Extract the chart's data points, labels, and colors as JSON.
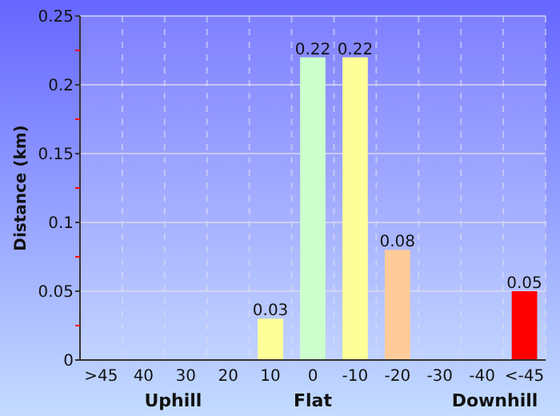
{
  "chart_data": {
    "type": "bar",
    "ylabel": "Distance (km)",
    "categories": [
      ">45",
      "40",
      "30",
      "20",
      "10",
      "0",
      "-10",
      "-20",
      "-30",
      "-40",
      "<-45"
    ],
    "values": [
      0,
      0,
      0,
      0,
      0.03,
      0.22,
      0.22,
      0.08,
      0,
      0,
      0.05
    ],
    "colors": [
      "#ff0000",
      "#ff9900",
      "#ff9900",
      "#ffcc99",
      "#ffff99",
      "#ccffcc",
      "#ffff99",
      "#ffcc99",
      "#ff9900",
      "#ff9900",
      "#ff0000"
    ],
    "value_labels": [
      null,
      null,
      null,
      null,
      "0.03",
      "0.22",
      "0.22",
      "0.08",
      null,
      null,
      "0.05"
    ],
    "ylim": [
      0,
      0.25
    ],
    "yticks": [
      0,
      {
        "value": 0.025,
        "label": null
      },
      0.05,
      {
        "value": 0.075,
        "label": null
      },
      0.1,
      {
        "value": 0.125,
        "label": null
      },
      0.15,
      {
        "value": 0.175,
        "label": null
      },
      0.2,
      {
        "value": 0.225,
        "label": null
      },
      0.25
    ],
    "grid": true,
    "annotations": [
      "Uphill",
      "Flat",
      "Downhill"
    ]
  }
}
